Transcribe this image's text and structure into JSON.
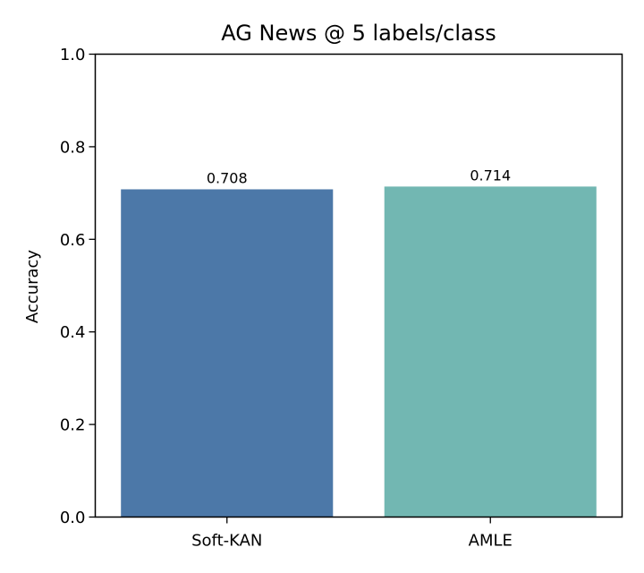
{
  "chart_data": {
    "type": "bar",
    "title": "AG News @ 5 labels/class",
    "xlabel": "",
    "ylabel": "Accuracy",
    "categories": [
      "Soft-KAN",
      "AMLE"
    ],
    "values": [
      0.708,
      0.714
    ],
    "value_labels": [
      "0.708",
      "0.714"
    ],
    "colors": [
      "#4c78a8",
      "#72b7b2"
    ],
    "ylim": [
      0,
      1.0
    ],
    "yticks": [
      0.0,
      0.2,
      0.4,
      0.6,
      0.8,
      1.0
    ],
    "ytick_labels": [
      "0.0",
      "0.2",
      "0.4",
      "0.6",
      "0.8",
      "1.0"
    ],
    "grid": false,
    "legend": false
  }
}
